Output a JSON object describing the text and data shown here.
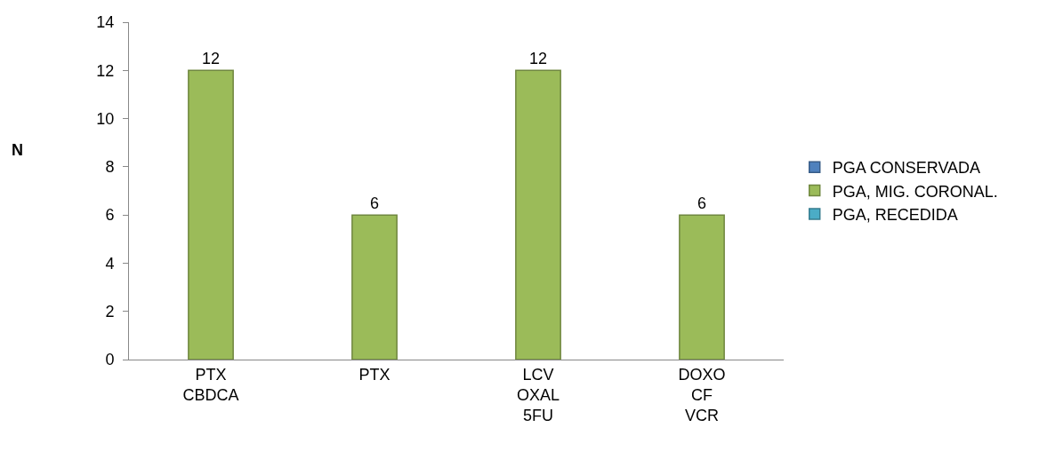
{
  "chart_data": {
    "type": "bar",
    "ylabel": "N",
    "categories": [
      "PTX\nCBDCA",
      "PTX",
      "LCV\nOXAL\n5FU",
      "DOXO\nCF\nVCR"
    ],
    "series": [
      {
        "name": "PGA CONSERVADA",
        "color": "#4f81bd",
        "values": [
          null,
          null,
          null,
          null
        ]
      },
      {
        "name": "PGA, MIG. CORONAL.",
        "color": "#9bbb59",
        "values": [
          12,
          6,
          12,
          6
        ]
      },
      {
        "name": "PGA, RECEDIDA",
        "color": "#4bacc6",
        "values": [
          null,
          null,
          null,
          null
        ]
      }
    ],
    "ylim": [
      0,
      14
    ],
    "yticks": [
      0,
      2,
      4,
      6,
      8,
      10,
      12,
      14
    ],
    "grid": false,
    "legend": "right",
    "data_labels": true
  }
}
